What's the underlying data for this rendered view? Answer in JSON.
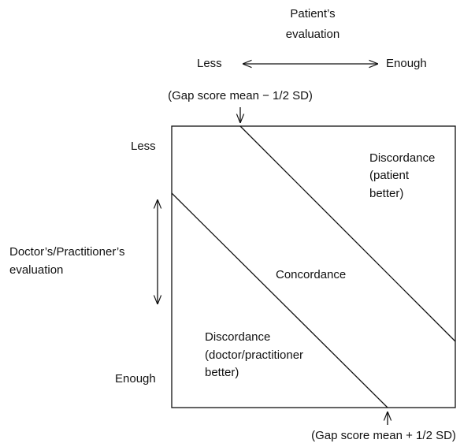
{
  "top_axis": {
    "title_lines": [
      "Patient’s",
      "evaluation"
    ],
    "low": "Less",
    "high": "Enough"
  },
  "left_axis": {
    "title_lines": [
      "Doctor’s/Practitioner’s",
      "evaluation"
    ],
    "low": "Less",
    "high": "Enough"
  },
  "upper_boundary": "(Gap score mean − 1/2 SD)",
  "lower_boundary": "(Gap score mean + 1/2 SD)",
  "regions": {
    "upper": [
      "Discordance",
      "(patient",
      "better)"
    ],
    "middle": [
      "Concordance"
    ],
    "lower": [
      "Discordance",
      "(doctor/practitioner",
      "better)"
    ]
  }
}
